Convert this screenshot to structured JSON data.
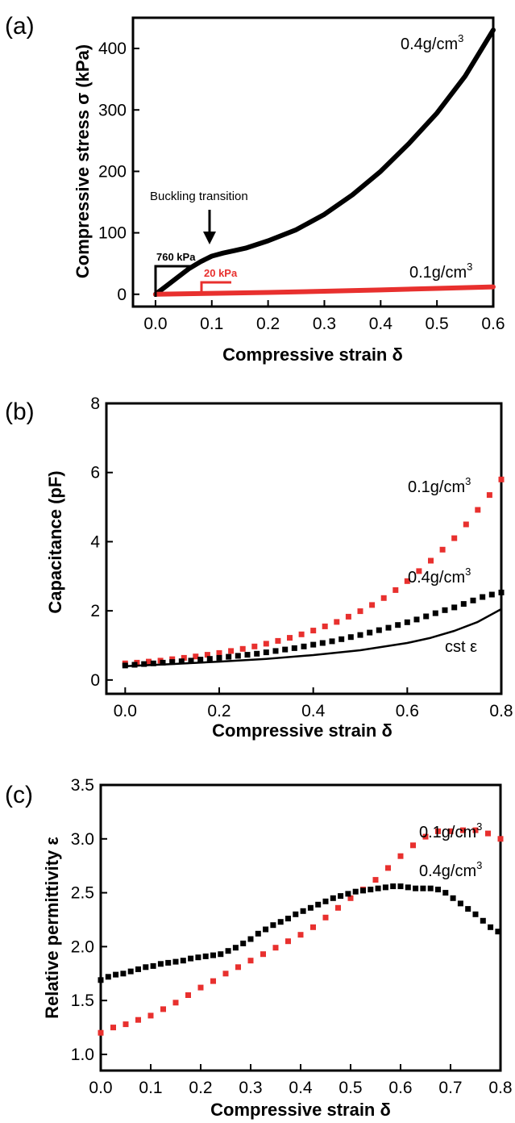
{
  "chart_data": [
    {
      "panel": "(a)",
      "type": "line",
      "xlabel": "Compressive strain δ",
      "ylabel": "Compressive stress σ (kPa)",
      "xlim": [
        -0.04,
        0.6
      ],
      "ylim": [
        -20,
        450
      ],
      "xticks": [
        "0.0",
        "0.1",
        "0.2",
        "0.3",
        "0.4",
        "0.5",
        "0.6"
      ],
      "yticks": [
        "0",
        "100",
        "200",
        "300",
        "400"
      ],
      "series": [
        {
          "name": "0.4g/cm",
          "color": "#000000",
          "x": [
            0,
            0.02,
            0.04,
            0.06,
            0.08,
            0.1,
            0.12,
            0.14,
            0.16,
            0.2,
            0.25,
            0.3,
            0.35,
            0.4,
            0.45,
            0.5,
            0.55,
            0.6
          ],
          "y": [
            0,
            14,
            28,
            42,
            53,
            62,
            67,
            71,
            75,
            87,
            105,
            130,
            162,
            200,
            245,
            295,
            355,
            430
          ]
        },
        {
          "name": "0.1g/cm",
          "color": "#e8302e",
          "x": [
            0,
            0.1,
            0.2,
            0.3,
            0.4,
            0.5,
            0.6
          ],
          "y": [
            0,
            1.5,
            3,
            5,
            7,
            9.5,
            12
          ]
        }
      ],
      "annotations": {
        "buckling": "Buckling transition",
        "slope_black": "760 kPa",
        "slope_red": "20 kPa",
        "label_black": "0.4g/cm",
        "label_red": "0.1g/cm",
        "sup": "3"
      }
    },
    {
      "panel": "(b)",
      "type": "scatter",
      "xlabel": "Compressive strain δ",
      "ylabel": "Capacitance (pF)",
      "xlim": [
        -0.04,
        0.8
      ],
      "ylim": [
        -0.4,
        8
      ],
      "xticks": [
        "0.0",
        "0.2",
        "0.4",
        "0.6",
        "0.8"
      ],
      "yticks": [
        "0",
        "2",
        "4",
        "6",
        "8"
      ],
      "series": [
        {
          "name": "0.1g/cm",
          "color": "#e8302e",
          "x": [
            0,
            0.025,
            0.05,
            0.075,
            0.1,
            0.125,
            0.15,
            0.175,
            0.2,
            0.225,
            0.25,
            0.275,
            0.3,
            0.325,
            0.35,
            0.375,
            0.4,
            0.425,
            0.45,
            0.475,
            0.5,
            0.525,
            0.55,
            0.575,
            0.6,
            0.625,
            0.65,
            0.675,
            0.7,
            0.725,
            0.75,
            0.775,
            0.8
          ],
          "y": [
            0.48,
            0.5,
            0.53,
            0.56,
            0.6,
            0.64,
            0.68,
            0.73,
            0.78,
            0.84,
            0.9,
            0.97,
            1.05,
            1.13,
            1.22,
            1.32,
            1.43,
            1.55,
            1.68,
            1.83,
            1.99,
            2.17,
            2.37,
            2.6,
            2.86,
            3.15,
            3.45,
            3.77,
            4.1,
            4.5,
            4.92,
            5.35,
            5.8
          ]
        },
        {
          "name": "0.4g/cm",
          "color": "#000000",
          "x": [
            0,
            0.02,
            0.04,
            0.06,
            0.08,
            0.1,
            0.12,
            0.14,
            0.16,
            0.18,
            0.2,
            0.22,
            0.24,
            0.26,
            0.28,
            0.3,
            0.32,
            0.34,
            0.36,
            0.38,
            0.4,
            0.42,
            0.44,
            0.46,
            0.48,
            0.5,
            0.52,
            0.54,
            0.56,
            0.58,
            0.6,
            0.62,
            0.64,
            0.66,
            0.68,
            0.7,
            0.72,
            0.74,
            0.76,
            0.78,
            0.8
          ],
          "y": [
            0.42,
            0.44,
            0.46,
            0.48,
            0.5,
            0.52,
            0.54,
            0.56,
            0.59,
            0.61,
            0.64,
            0.67,
            0.7,
            0.73,
            0.76,
            0.8,
            0.84,
            0.88,
            0.92,
            0.97,
            1.02,
            1.07,
            1.12,
            1.18,
            1.24,
            1.3,
            1.37,
            1.44,
            1.51,
            1.59,
            1.67,
            1.75,
            1.84,
            1.93,
            2.02,
            2.1,
            2.2,
            2.3,
            2.4,
            2.47,
            2.53
          ]
        },
        {
          "name": "cst ε",
          "color": "#000000",
          "type": "line",
          "x": [
            0,
            0.1,
            0.2,
            0.3,
            0.4,
            0.5,
            0.6,
            0.65,
            0.7,
            0.75,
            0.8
          ],
          "y": [
            0.4,
            0.46,
            0.53,
            0.61,
            0.72,
            0.86,
            1.07,
            1.22,
            1.42,
            1.68,
            2.05
          ]
        }
      ],
      "annotations": {
        "label_red": "0.1g/cm",
        "label_black": "0.4g/cm",
        "label_cst": "cst ε",
        "sup": "3"
      }
    },
    {
      "panel": "(c)",
      "type": "scatter",
      "xlabel": "Compressive strain δ",
      "ylabel": "Relative permittivity ε",
      "xlim": [
        0,
        0.8
      ],
      "ylim": [
        0.85,
        3.5
      ],
      "xticks": [
        "0.0",
        "0.1",
        "0.2",
        "0.3",
        "0.4",
        "0.5",
        "0.6",
        "0.7",
        "0.8"
      ],
      "yticks": [
        "1.0",
        "1.5",
        "2.0",
        "2.5",
        "3.0",
        "3.5"
      ],
      "series": [
        {
          "name": "0.1g/cm",
          "color": "#e8302e",
          "x": [
            0,
            0.025,
            0.05,
            0.075,
            0.1,
            0.125,
            0.15,
            0.175,
            0.2,
            0.225,
            0.25,
            0.275,
            0.3,
            0.325,
            0.35,
            0.375,
            0.4,
            0.425,
            0.45,
            0.475,
            0.5,
            0.525,
            0.55,
            0.575,
            0.6,
            0.625,
            0.65,
            0.675,
            0.7,
            0.725,
            0.75,
            0.775,
            0.8
          ],
          "y": [
            1.2,
            1.25,
            1.28,
            1.32,
            1.36,
            1.42,
            1.48,
            1.55,
            1.62,
            1.68,
            1.75,
            1.81,
            1.87,
            1.93,
            1.99,
            2.05,
            2.11,
            2.18,
            2.27,
            2.36,
            2.45,
            2.53,
            2.62,
            2.73,
            2.84,
            2.94,
            3.02,
            3.07,
            3.07,
            3.08,
            3.08,
            3.05,
            3.0
          ]
        },
        {
          "name": "0.4g/cm",
          "color": "#000000",
          "x": [
            0,
            0.015,
            0.03,
            0.045,
            0.06,
            0.075,
            0.09,
            0.105,
            0.12,
            0.135,
            0.15,
            0.165,
            0.18,
            0.195,
            0.21,
            0.225,
            0.24,
            0.255,
            0.27,
            0.285,
            0.3,
            0.315,
            0.33,
            0.345,
            0.36,
            0.375,
            0.39,
            0.405,
            0.42,
            0.435,
            0.45,
            0.465,
            0.48,
            0.495,
            0.51,
            0.525,
            0.54,
            0.555,
            0.57,
            0.585,
            0.6,
            0.615,
            0.63,
            0.645,
            0.66,
            0.675,
            0.69,
            0.705,
            0.72,
            0.735,
            0.75,
            0.765,
            0.78,
            0.795
          ],
          "y": [
            1.69,
            1.72,
            1.74,
            1.75,
            1.77,
            1.79,
            1.81,
            1.82,
            1.84,
            1.85,
            1.86,
            1.87,
            1.89,
            1.9,
            1.91,
            1.92,
            1.93,
            1.96,
            1.99,
            2.03,
            2.07,
            2.12,
            2.16,
            2.2,
            2.23,
            2.26,
            2.3,
            2.33,
            2.36,
            2.39,
            2.42,
            2.45,
            2.47,
            2.49,
            2.51,
            2.52,
            2.53,
            2.54,
            2.55,
            2.56,
            2.56,
            2.55,
            2.54,
            2.54,
            2.54,
            2.53,
            2.5,
            2.45,
            2.4,
            2.35,
            2.3,
            2.24,
            2.18,
            2.14
          ]
        }
      ],
      "annotations": {
        "label_red": "0.1g/cm",
        "label_black": "0.4g/cm",
        "sup": "3"
      }
    }
  ]
}
